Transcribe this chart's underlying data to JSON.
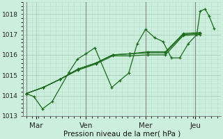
{
  "title": "Pression niveau de la mer( hPa )",
  "bg_color": "#cceedd",
  "grid_minor_color": "#bbddcc",
  "grid_major_color": "#aaccbb",
  "vline_color": "#888888",
  "line_color": "#1a6b1a",
  "ylim": [
    1013.0,
    1018.6
  ],
  "yticks": [
    1013,
    1014,
    1015,
    1016,
    1017,
    1018
  ],
  "xtick_labels": [
    "Mar",
    "Ven",
    "Mer",
    "Jeu"
  ],
  "xtick_positions": [
    0.5,
    3.0,
    6.0,
    8.5
  ],
  "vline_positions": [
    0,
    3.0,
    6.0,
    8.5
  ],
  "series": [
    [
      1014.1,
      1014.4,
      1014.8,
      1015.3,
      1015.6,
      1016.0,
      1016.05,
      1016.1,
      1016.1,
      1017.0,
      1017.05
    ],
    [
      1014.1,
      1014.4,
      1014.8,
      1015.25,
      1015.55,
      1015.95,
      1015.95,
      1016.0,
      1016.0,
      1016.95,
      1017.0
    ],
    [
      1014.1,
      1013.95,
      1013.35,
      1013.7,
      1015.15,
      1015.8,
      1016.05,
      1016.35,
      1014.4,
      1014.75,
      1015.1,
      1016.55,
      1017.25,
      1016.85,
      1016.65,
      1015.85,
      1015.85,
      1016.55,
      1017.0,
      1018.15,
      1018.25,
      1017.9,
      1017.3
    ],
    [
      1014.1,
      1014.4,
      1014.8,
      1015.3,
      1015.6,
      1016.0,
      1016.05,
      1016.15,
      1016.15,
      1017.05,
      1017.1
    ]
  ],
  "series_x": [
    [
      0,
      0.85,
      1.7,
      2.6,
      3.5,
      4.35,
      5.2,
      6.1,
      7.0,
      7.9,
      8.75
    ],
    [
      0,
      0.85,
      1.7,
      2.6,
      3.5,
      4.35,
      5.2,
      6.1,
      7.0,
      7.9,
      8.75
    ],
    [
      0,
      0.38,
      0.82,
      1.3,
      2.15,
      2.58,
      3.0,
      3.45,
      4.3,
      4.72,
      5.15,
      5.58,
      6.0,
      6.45,
      6.88,
      7.3,
      7.72,
      8.15,
      8.58,
      8.75,
      9.0,
      9.2,
      9.45
    ],
    [
      0,
      0.85,
      1.7,
      2.6,
      3.5,
      4.35,
      5.2,
      6.1,
      7.0,
      7.9,
      8.75
    ]
  ],
  "marker_size": 3.5,
  "linewidth": 0.9,
  "xlim": [
    -0.15,
    9.8
  ],
  "figsize": [
    3.2,
    2.0
  ],
  "dpi": 100,
  "ylabel_fontsize": 6.5,
  "xlabel_fontsize": 7.5,
  "xtick_fontsize": 7.5,
  "ytick_fontsize": 6.5
}
